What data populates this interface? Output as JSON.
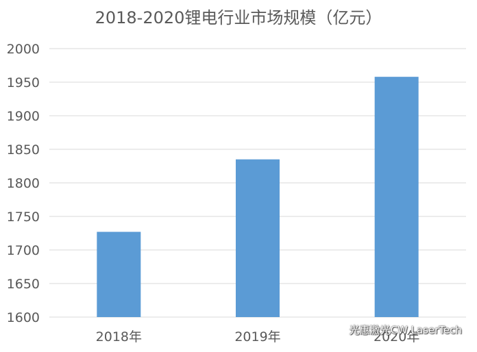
{
  "chart_data": {
    "type": "bar",
    "title": "2018-2020锂电行业市场规模（亿元）",
    "categories": [
      "2018年",
      "2019年",
      "2020年"
    ],
    "values": [
      1727,
      1835,
      1958
    ],
    "ylim": [
      1600,
      2000
    ],
    "yticks": [
      1600,
      1650,
      1700,
      1750,
      1800,
      1850,
      1900,
      1950,
      2000
    ],
    "xlabel": "",
    "ylabel": "",
    "grid": true,
    "color": "#5b9bd5"
  },
  "watermark": {
    "text": "光惠激光CW LaserTech",
    "icon": "wechat-icon"
  }
}
